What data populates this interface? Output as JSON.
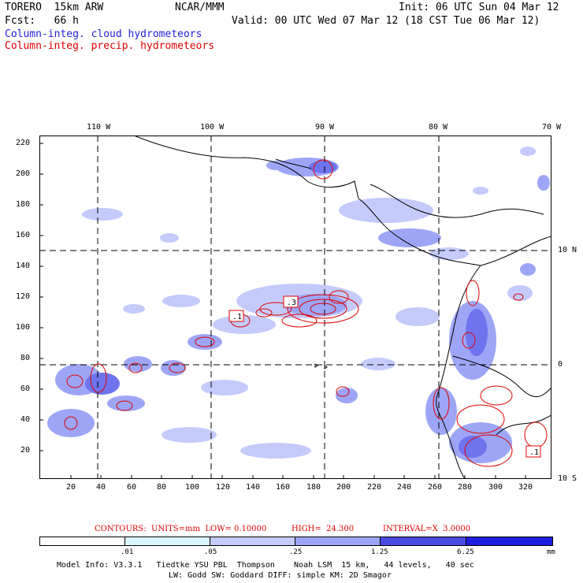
{
  "header": {
    "model": "TORERO  15km ARW",
    "org": "NCAR/MMM",
    "init": "Init: 06 UTC Sun 04 Mar 12",
    "fcst": "Fcst:   66 h",
    "valid": "Valid: 00 UTC Wed 07 Mar 12 (18 CST Tue 06 Mar 12)",
    "field_cloud": "Column-integ. cloud hydrometeors",
    "field_precip": "Column-integ. precip. hydrometeors"
  },
  "colors": {
    "cloud_text": "#1f1fd8",
    "precip_text": "#e00000",
    "contour": "#e00000",
    "shade_1": "#d8f4ff",
    "shade_2": "#c4cbfb",
    "shade_3": "#9da6f6",
    "shade_4": "#6e74ee",
    "shade_5": "#4a4be4",
    "shade_6": "#1e1ee0"
  },
  "axes": {
    "top_lon_labels": [
      "110 W",
      "100 W",
      "90 W",
      "80 W",
      "70 W"
    ],
    "right_lat_labels": [
      "10 N",
      "0",
      "10 S"
    ],
    "x_ticks": [
      "20",
      "40",
      "60",
      "80",
      "100",
      "120",
      "140",
      "160",
      "180",
      "200",
      "220",
      "240",
      "260",
      "280",
      "300",
      "320"
    ],
    "y_ticks": [
      "20",
      "40",
      "60",
      "80",
      "100",
      "120",
      "140",
      "160",
      "180",
      "200",
      "220"
    ]
  },
  "contour_labels": [
    ".1",
    ".3",
    ".1"
  ],
  "contour_info": {
    "contours": "CONTOURS:  UNITS=mm  LOW= 0.10000",
    "high": "HIGH=  24.300",
    "interval": "INTERVAL=X  3.0000"
  },
  "colorbar": {
    "ticks": [
      ".01",
      ".05",
      ".25",
      "1.25",
      "6.25"
    ],
    "units": "mm"
  },
  "footer": {
    "line1": "Model Info: V3.3.1   Tiedtke YSU PBL  Thompson    Noah LSM  15 km,   44 levels,   40 sec",
    "line2": "LW: Godd SW: Goddard DIFF: simple KM: 2D Smagor"
  }
}
